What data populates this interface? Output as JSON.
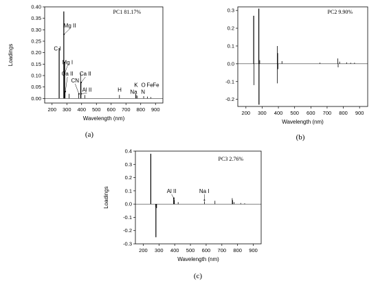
{
  "chart_data": [
    {
      "type": "line",
      "panel_label": "(a)",
      "title": "PC1 81.17%",
      "xlabel": "Wavelength (nm)",
      "ylabel": "Loadings",
      "xlim": [
        150,
        950
      ],
      "ylim": [
        -0.02,
        0.4
      ],
      "x_ticks": [
        200,
        300,
        400,
        500,
        600,
        700,
        800,
        900
      ],
      "y_ticks": [
        0.0,
        0.05,
        0.1,
        0.15,
        0.2,
        0.25,
        0.3,
        0.35,
        0.4
      ],
      "y_tick_labels": [
        "0.00",
        "0.05",
        "0.10",
        "0.15",
        "0.20",
        "0.25",
        "0.30",
        "0.35",
        "0.40"
      ],
      "peaks": [
        {
          "x": 248,
          "y": 0.22
        },
        {
          "x": 279.5,
          "y": 0.38
        },
        {
          "x": 285,
          "y": 0.16
        },
        {
          "x": 288,
          "y": 0.03
        },
        {
          "x": 315,
          "y": 0.02
        },
        {
          "x": 380,
          "y": 0.02
        },
        {
          "x": 393,
          "y": 0.11
        },
        {
          "x": 396,
          "y": 0.07
        },
        {
          "x": 422,
          "y": 0.015
        },
        {
          "x": 656,
          "y": 0.015
        },
        {
          "x": 766,
          "y": 0.02
        },
        {
          "x": 769,
          "y": 0.015
        },
        {
          "x": 777,
          "y": 0.012
        },
        {
          "x": 820,
          "y": 0.01
        },
        {
          "x": 845,
          "y": 0.008
        },
        {
          "x": 869,
          "y": 0.006
        }
      ],
      "annotations": [
        {
          "text": "Mg II",
          "x": 320,
          "y": 0.31,
          "point_x": 281,
          "point_y": 0.28
        },
        {
          "text": "C I",
          "x": 236,
          "y": 0.21
        },
        {
          "text": "Mg I",
          "x": 305,
          "y": 0.15,
          "point_x": 286,
          "point_y": 0.11
        },
        {
          "text": "Ca II",
          "x": 304,
          "y": 0.1,
          "point_x": 290,
          "point_y": 0.03
        },
        {
          "text": "CN",
          "x": 356,
          "y": 0.07,
          "point_x": 382,
          "point_y": 0.02
        },
        {
          "text": "Ca II",
          "x": 426,
          "y": 0.1,
          "point_x": 397,
          "point_y": 0.07
        },
        {
          "text": "Al II",
          "x": 436,
          "y": 0.03,
          "point_x": 396,
          "point_y": 0.02
        },
        {
          "text": "H",
          "x": 657,
          "y": 0.03
        },
        {
          "text": "Na",
          "x": 752,
          "y": 0.02
        },
        {
          "text": "K",
          "x": 768,
          "y": 0.05
        },
        {
          "text": "O",
          "x": 818,
          "y": 0.05
        },
        {
          "text": "N",
          "x": 816,
          "y": 0.02
        },
        {
          "text": "Fe",
          "x": 862,
          "y": 0.05
        },
        {
          "text": "Fe",
          "x": 903,
          "y": 0.05
        }
      ]
    },
    {
      "type": "line",
      "panel_label": "(b)",
      "title": "PC2 9.90%",
      "xlabel": "Wavelength (nm)",
      "ylabel": "",
      "xlim": [
        150,
        950
      ],
      "ylim": [
        -0.24,
        0.32
      ],
      "x_ticks": [
        200,
        300,
        400,
        500,
        600,
        700,
        800,
        900
      ],
      "y_ticks": [
        -0.2,
        -0.1,
        0.0,
        0.1,
        0.2,
        0.3
      ],
      "y_tick_labels": [
        "-0.2",
        "-0.1",
        "0.0",
        "0.1",
        "0.2",
        "0.3"
      ],
      "peaks": [
        {
          "x": 248,
          "y": 0.27
        },
        {
          "x": 250,
          "y": -0.12
        },
        {
          "x": 279.5,
          "y": 0.31
        },
        {
          "x": 280.5,
          "y": -0.23
        },
        {
          "x": 285,
          "y": 0.02
        },
        {
          "x": 393,
          "y": 0.1
        },
        {
          "x": 394,
          "y": -0.11
        },
        {
          "x": 396,
          "y": 0.06
        },
        {
          "x": 398,
          "y": -0.03
        },
        {
          "x": 422,
          "y": 0.015
        },
        {
          "x": 656,
          "y": 0.006
        },
        {
          "x": 766,
          "y": 0.03
        },
        {
          "x": 768,
          "y": -0.02
        },
        {
          "x": 777,
          "y": 0.012
        },
        {
          "x": 820,
          "y": 0.008
        },
        {
          "x": 845,
          "y": 0.006
        },
        {
          "x": 869,
          "y": 0.006
        }
      ]
    },
    {
      "type": "line",
      "panel_label": "(c)",
      "title": "PC3 2.76%",
      "xlabel": "Wavelength (nm)",
      "ylabel": "Loadings",
      "xlim": [
        150,
        950
      ],
      "ylim": [
        -0.3,
        0.4
      ],
      "x_ticks": [
        200,
        300,
        400,
        500,
        600,
        700,
        800,
        900
      ],
      "y_ticks": [
        -0.3,
        -0.2,
        -0.1,
        0.0,
        0.1,
        0.2,
        0.3,
        0.4
      ],
      "y_tick_labels": [
        "-0.3",
        "-0.2",
        "-0.1",
        "0.0",
        "0.1",
        "0.2",
        "0.3",
        "0.4"
      ],
      "peaks": [
        {
          "x": 248,
          "y": 0.38
        },
        {
          "x": 279.5,
          "y": -0.02
        },
        {
          "x": 280.5,
          "y": -0.25
        },
        {
          "x": 285,
          "y": -0.03
        },
        {
          "x": 393,
          "y": 0.04
        },
        {
          "x": 396,
          "y": 0.05
        },
        {
          "x": 398,
          "y": 0.03
        },
        {
          "x": 422,
          "y": 0.015
        },
        {
          "x": 589,
          "y": 0.02
        },
        {
          "x": 656,
          "y": 0.025
        },
        {
          "x": 766,
          "y": 0.045
        },
        {
          "x": 769,
          "y": 0.03
        },
        {
          "x": 777,
          "y": 0.015
        },
        {
          "x": 820,
          "y": 0.008
        },
        {
          "x": 845,
          "y": 0.006
        }
      ],
      "annotations": [
        {
          "text": "Al II",
          "x": 380,
          "y": 0.085,
          "point_x": 394,
          "point_y": 0.045
        },
        {
          "text": "Na I",
          "x": 588,
          "y": 0.085,
          "point_x": 589,
          "point_y": 0.03
        }
      ]
    }
  ]
}
